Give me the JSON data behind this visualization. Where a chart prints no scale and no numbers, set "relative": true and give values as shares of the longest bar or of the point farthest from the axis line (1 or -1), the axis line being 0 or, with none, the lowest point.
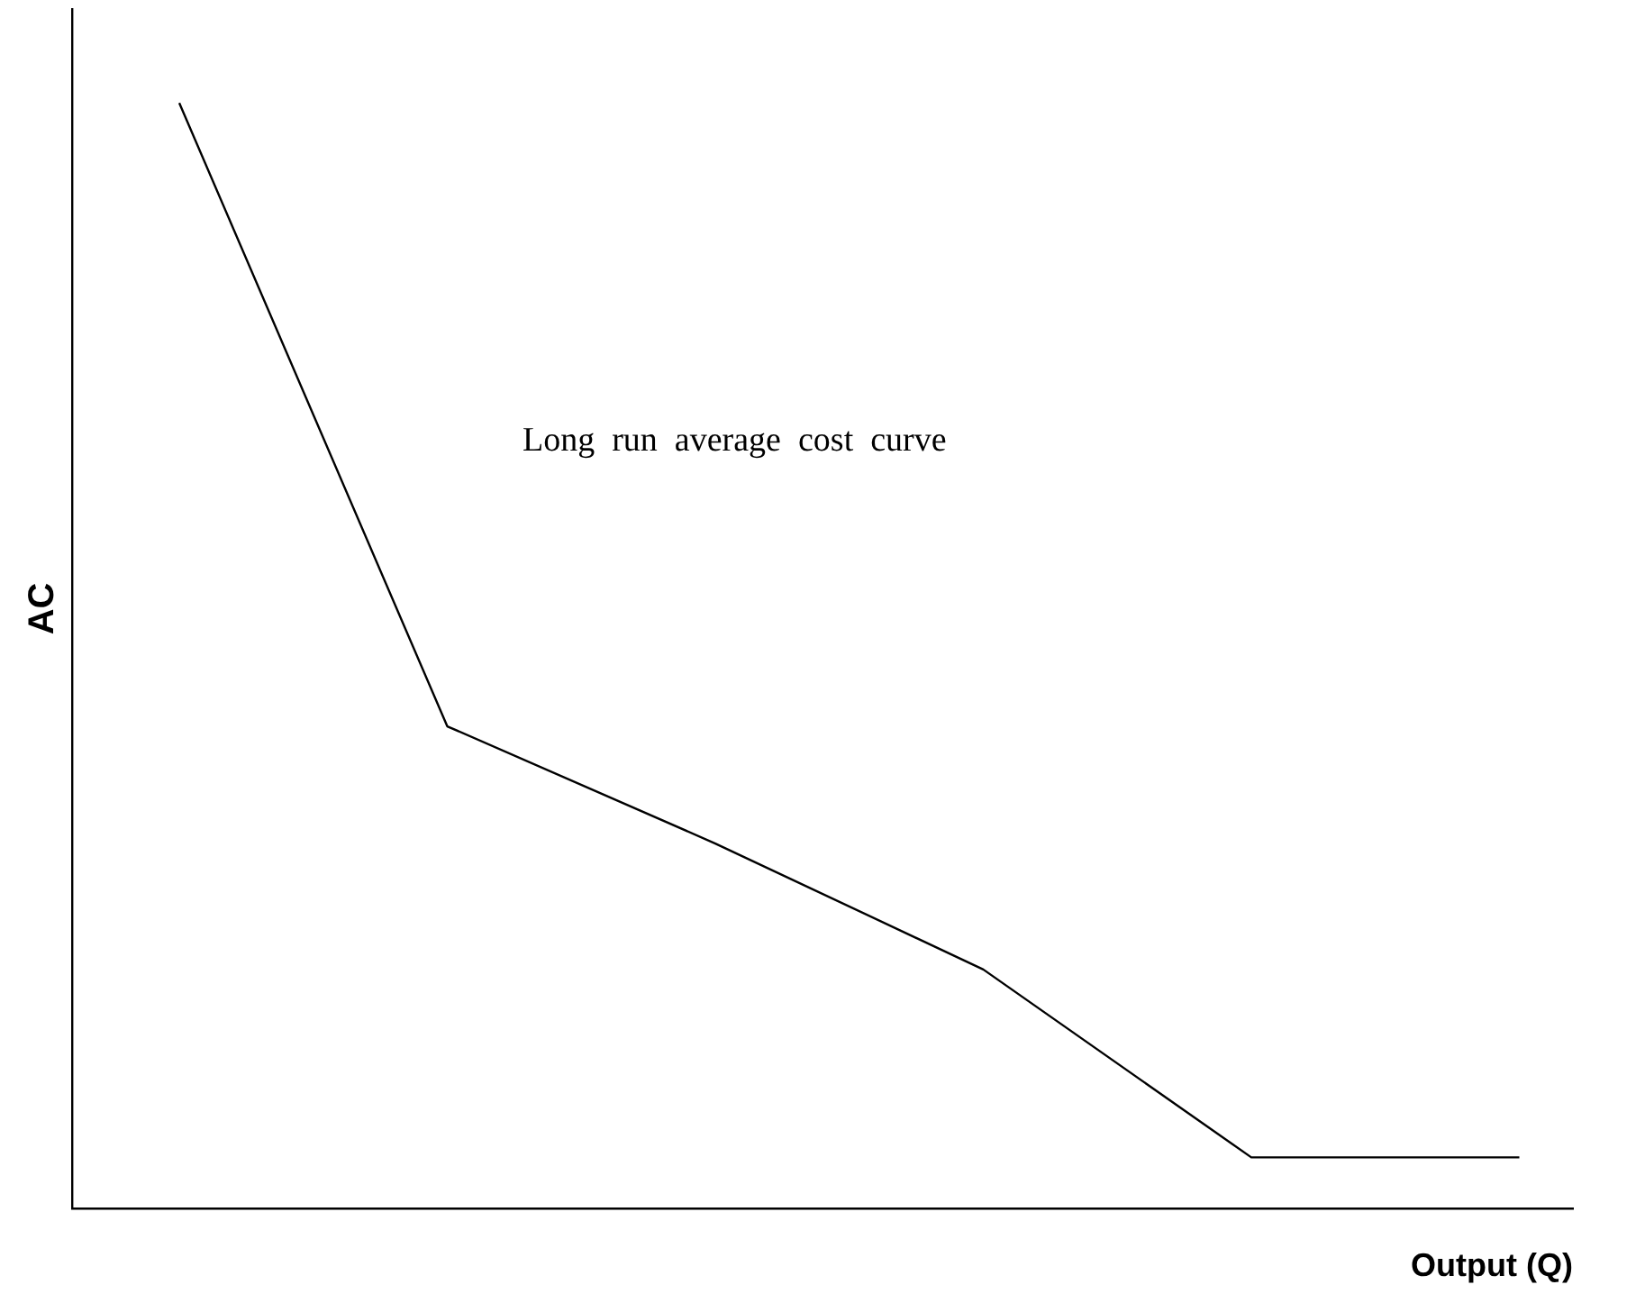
{
  "chart_data": {
    "type": "line",
    "relative": true,
    "xlabel": "Output (Q)",
    "ylabel": "AC",
    "categories": [
      null,
      null,
      null,
      null,
      null,
      null
    ],
    "series": [
      {
        "color": "#000000",
        "values": [
          1,
          0.436,
          0.33,
          0.216,
          0.046,
          0.046
        ]
      }
    ],
    "annotations": [
      "Long run average cost curve"
    ],
    "grid": false,
    "legend": false,
    "marker": "none",
    "line_style": "solid"
  }
}
